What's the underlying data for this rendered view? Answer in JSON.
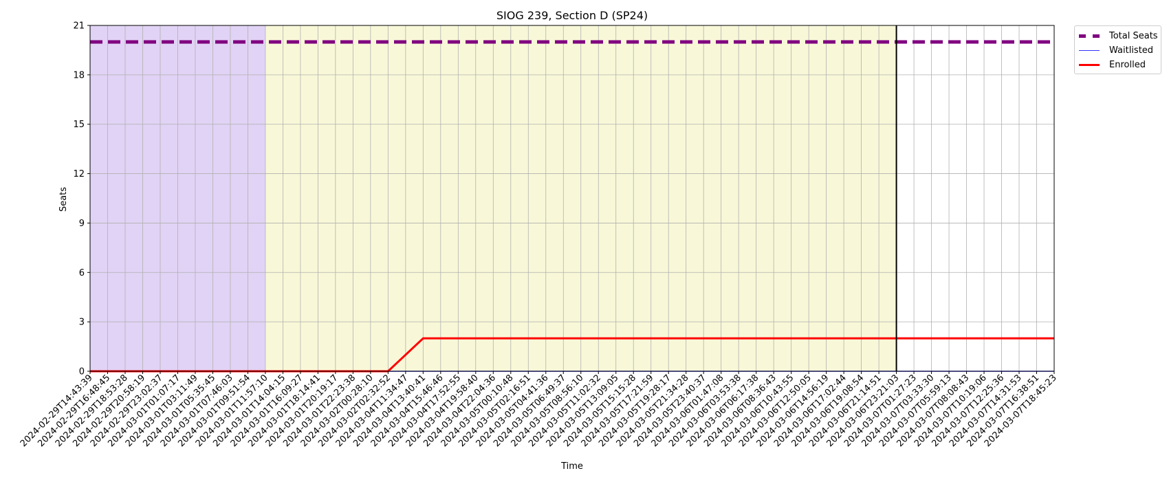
{
  "chart_data": {
    "type": "line",
    "title": "SIOG 239, Section D (SP24)",
    "xlabel": "Time",
    "ylabel": "Seats",
    "ylim": [
      0,
      21
    ],
    "yticks": [
      "0",
      "3",
      "6",
      "9",
      "12",
      "15",
      "18",
      "21"
    ],
    "grid": true,
    "legend_position": "outside-top-right",
    "x": [
      "2024-02-29T14:43:39",
      "2024-02-29T16:48:45",
      "2024-02-29T18:53:28",
      "2024-02-29T20:58:19",
      "2024-02-29T23:02:37",
      "2024-03-01T01:07:17",
      "2024-03-01T03:11:49",
      "2024-03-01T05:35:45",
      "2024-03-01T07:46:03",
      "2024-03-01T09:51:54",
      "2024-03-01T11:57:10",
      "2024-03-01T14:04:15",
      "2024-03-01T16:09:27",
      "2024-03-01T18:14:41",
      "2024-03-01T20:19:17",
      "2024-03-01T22:23:38",
      "2024-03-02T00:28:10",
      "2024-03-02T02:32:52",
      "2024-03-04T11:34:47",
      "2024-03-04T13:40:41",
      "2024-03-04T15:46:46",
      "2024-03-04T17:52:55",
      "2024-03-04T19:58:40",
      "2024-03-04T22:04:36",
      "2024-03-05T00:10:48",
      "2024-03-05T02:16:51",
      "2024-03-05T04:41:36",
      "2024-03-05T06:49:37",
      "2024-03-05T08:56:10",
      "2024-03-05T11:02:32",
      "2024-03-05T13:09:05",
      "2024-03-05T15:15:28",
      "2024-03-05T17:21:59",
      "2024-03-05T19:28:17",
      "2024-03-05T21:34:28",
      "2024-03-05T23:40:37",
      "2024-03-06T01:47:08",
      "2024-03-06T03:53:38",
      "2024-03-06T06:17:38",
      "2024-03-06T08:36:43",
      "2024-03-06T10:43:55",
      "2024-03-06T12:50:05",
      "2024-03-06T14:56:19",
      "2024-03-06T17:02:44",
      "2024-03-06T19:08:54",
      "2024-03-06T21:14:51",
      "2024-03-06T23:21:03",
      "2024-03-07T01:27:23",
      "2024-03-07T03:33:30",
      "2024-03-07T05:59:13",
      "2024-03-07T08:08:43",
      "2024-03-07T10:19:06",
      "2024-03-07T12:25:36",
      "2024-03-07T14:31:53",
      "2024-03-07T16:38:51",
      "2024-03-07T18:45:23"
    ],
    "series": [
      {
        "name": "Total Seats",
        "color": "#800080",
        "style": "dashed",
        "values": [
          20,
          20,
          20,
          20,
          20,
          20,
          20,
          20,
          20,
          20,
          20,
          20,
          20,
          20,
          20,
          20,
          20,
          20,
          20,
          20,
          20,
          20,
          20,
          20,
          20,
          20,
          20,
          20,
          20,
          20,
          20,
          20,
          20,
          20,
          20,
          20,
          20,
          20,
          20,
          20,
          20,
          20,
          20,
          20,
          20,
          20,
          20,
          20,
          20,
          20,
          20,
          20,
          20,
          20,
          20,
          20
        ]
      },
      {
        "name": "Waitlisted",
        "color": "#3333ff",
        "style": "solid",
        "values": [
          0,
          0,
          0,
          0,
          0,
          0,
          0,
          0,
          0,
          0,
          0,
          0,
          0,
          0,
          0,
          0,
          0,
          0,
          0,
          0,
          0,
          0,
          0,
          0,
          0,
          0,
          0,
          0,
          0,
          0,
          0,
          0,
          0,
          0,
          0,
          0,
          0,
          0,
          0,
          0,
          0,
          0,
          0,
          0,
          0,
          0,
          0,
          0,
          0,
          0,
          0,
          0,
          0,
          0,
          0,
          0
        ]
      },
      {
        "name": "Enrolled",
        "color": "#ff0000",
        "style": "solid",
        "values": [
          0,
          0,
          0,
          0,
          0,
          0,
          0,
          0,
          0,
          0,
          0,
          0,
          0,
          0,
          0,
          0,
          0,
          0,
          1,
          2,
          2,
          2,
          2,
          2,
          2,
          2,
          2,
          2,
          2,
          2,
          2,
          2,
          2,
          2,
          2,
          2,
          2,
          2,
          2,
          2,
          2,
          2,
          2,
          2,
          2,
          2,
          2,
          2,
          2,
          2,
          2,
          2,
          2,
          2,
          2,
          2
        ]
      }
    ],
    "shaded_regions": [
      {
        "from_index": 0,
        "to_index": 10,
        "color": "#e1d3f5"
      },
      {
        "from_index": 10,
        "to_index": 46,
        "color": "#f8f8d8"
      }
    ],
    "vertical_marker_index": 46,
    "vertical_marker_color": "#000000"
  }
}
